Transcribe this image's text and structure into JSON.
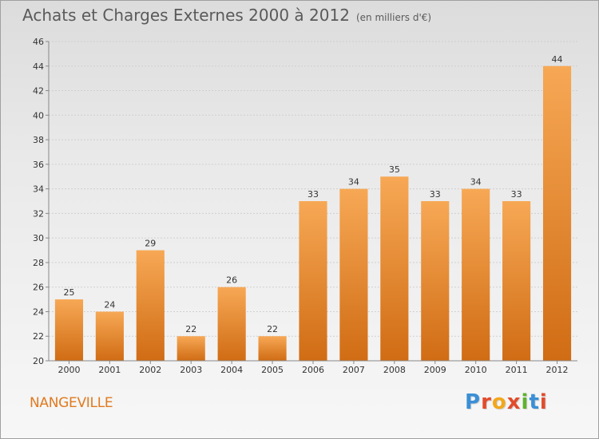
{
  "header": {
    "title": "Achats et Charges Externes 2000 à 2012",
    "unit": "(en milliers d'€)"
  },
  "footer": {
    "city": "NANGEVILLE",
    "logo_letters": [
      "P",
      "r",
      "o",
      "x",
      "i",
      "t",
      "i"
    ]
  },
  "colors": {
    "bar_top": "#f7a855",
    "bar_bottom": "#d06c14",
    "city_text": "#e07a1f",
    "logo": [
      "#3a8fd6",
      "#e24b2b",
      "#f2a71b",
      "#e24b2b",
      "#5fb230",
      "#3a8fd6",
      "#e24b2b"
    ]
  },
  "chart_data": {
    "type": "bar",
    "categories": [
      "2000",
      "2001",
      "2002",
      "2003",
      "2004",
      "2005",
      "2006",
      "2007",
      "2008",
      "2009",
      "2010",
      "2011",
      "2012"
    ],
    "values": [
      25,
      24,
      29,
      22,
      26,
      22,
      33,
      34,
      35,
      33,
      34,
      33,
      44
    ],
    "title": "Achats et Charges Externes 2000 à 2012",
    "ylim": [
      20,
      46
    ],
    "yticks": [
      20,
      22,
      24,
      26,
      28,
      30,
      32,
      34,
      36,
      38,
      40,
      42,
      44,
      46
    ],
    "grid": true
  }
}
